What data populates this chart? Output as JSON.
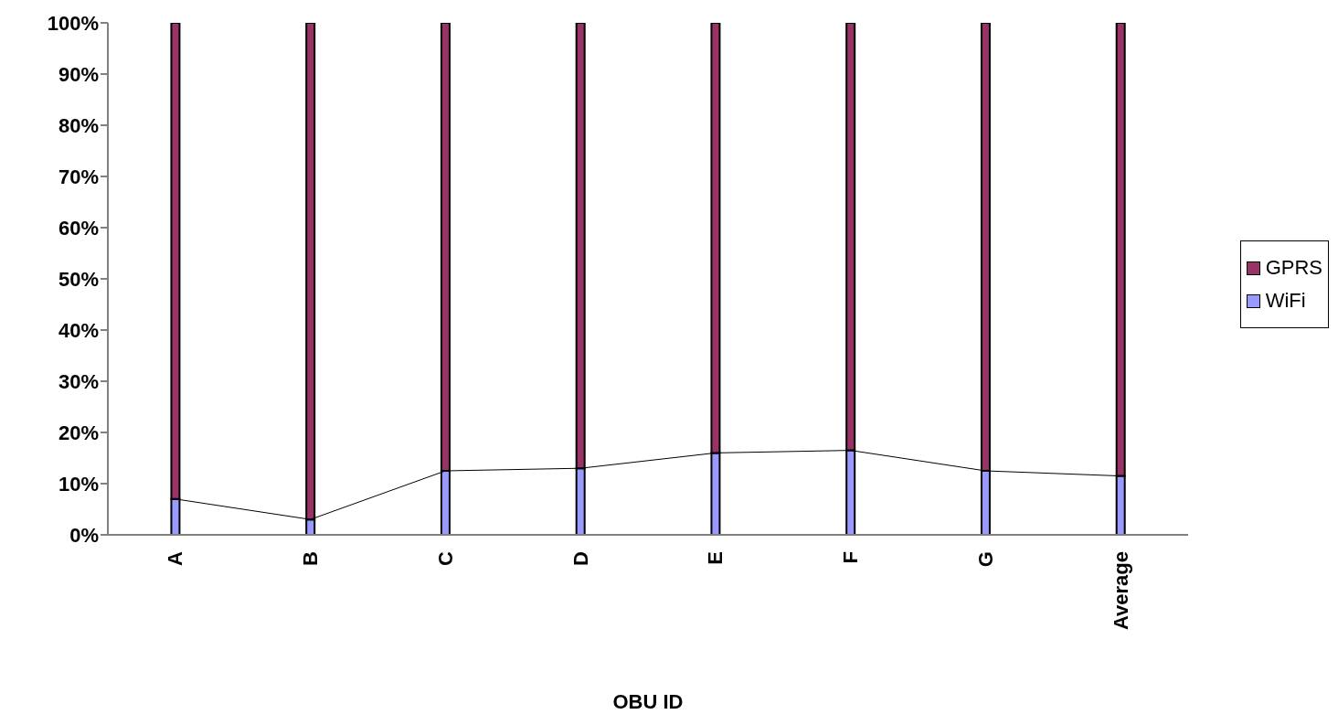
{
  "chart_data": {
    "type": "bar",
    "xlabel": "OBU ID",
    "stacked": true,
    "categories": [
      "A",
      "B",
      "C",
      "D",
      "E",
      "F",
      "G",
      "Average"
    ],
    "series": [
      {
        "name": "WiFi",
        "color": "#9999ff",
        "values": [
          7,
          3,
          12.5,
          13,
          16,
          16.5,
          12.5,
          11.5
        ]
      },
      {
        "name": "GPRS",
        "color": "#993366",
        "values": [
          93,
          97,
          87.5,
          87,
          84,
          83.5,
          87.5,
          88.5
        ]
      },
      {
        "type": "line",
        "color": "#000000",
        "values": [
          7,
          3,
          12.5,
          13,
          16,
          16.5,
          12.5,
          11.5
        ]
      }
    ],
    "ylim": [
      0,
      100
    ],
    "yticks": [
      {
        "value": 0,
        "label": "0%"
      },
      {
        "value": 10,
        "label": "10%"
      },
      {
        "value": 20,
        "label": "20%"
      },
      {
        "value": 30,
        "label": "30%"
      },
      {
        "value": 40,
        "label": "40%"
      },
      {
        "value": 50,
        "label": "50%"
      },
      {
        "value": 60,
        "label": "60%"
      },
      {
        "value": 70,
        "label": "70%"
      },
      {
        "value": 80,
        "label": "80%"
      },
      {
        "value": 90,
        "label": "90%"
      },
      {
        "value": 100,
        "label": "100%"
      }
    ],
    "grid": false,
    "legend": "right"
  }
}
